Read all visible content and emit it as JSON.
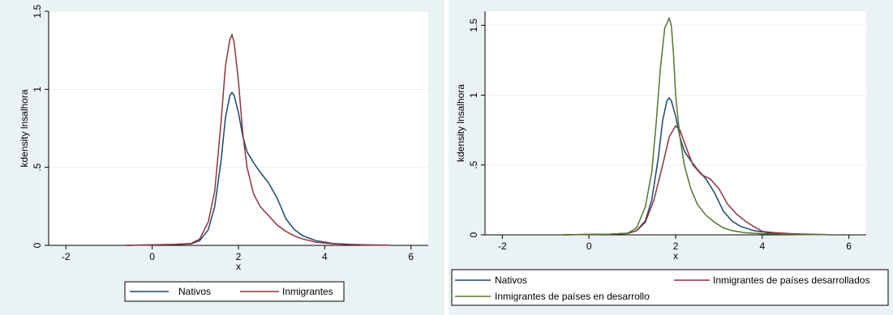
{
  "chart_data": [
    {
      "type": "line",
      "xlabel": "x",
      "ylabel": "kdensity lnsalhora",
      "xlim": [
        -2.4,
        6.4
      ],
      "ylim": [
        0,
        1.5
      ],
      "xticks": [
        -2,
        0,
        2,
        4,
        6
      ],
      "yticks": [
        0,
        0.5,
        1,
        1.5
      ],
      "xtick_labels": [
        "-2",
        "0",
        "2",
        "4",
        "6"
      ],
      "ytick_labels": [
        "0",
        ".5",
        "1",
        "1.5"
      ],
      "grid": true,
      "legend_position": "bottom",
      "series": [
        {
          "name": "Nativos",
          "color": "#1a476f",
          "x": [
            -0.6,
            0.0,
            0.5,
            0.9,
            1.1,
            1.3,
            1.45,
            1.6,
            1.7,
            1.8,
            1.85,
            1.9,
            2.0,
            2.1,
            2.2,
            2.35,
            2.5,
            2.7,
            2.9,
            3.1,
            3.3,
            3.5,
            3.8,
            4.2,
            4.6,
            5.0,
            5.5
          ],
          "y": [
            0.0,
            0.003,
            0.005,
            0.01,
            0.03,
            0.1,
            0.25,
            0.55,
            0.82,
            0.96,
            0.98,
            0.96,
            0.85,
            0.7,
            0.6,
            0.53,
            0.47,
            0.4,
            0.3,
            0.17,
            0.1,
            0.06,
            0.03,
            0.012,
            0.006,
            0.003,
            0.001
          ]
        },
        {
          "name": "Inmigrantes",
          "color": "#90353b",
          "x": [
            -0.6,
            0.0,
            0.5,
            0.9,
            1.1,
            1.3,
            1.45,
            1.6,
            1.7,
            1.8,
            1.85,
            1.9,
            2.0,
            2.1,
            2.2,
            2.35,
            2.5,
            2.7,
            2.9,
            3.1,
            3.3,
            3.5,
            3.8,
            4.2,
            4.6,
            5.0,
            5.5
          ],
          "y": [
            0.0,
            0.003,
            0.006,
            0.012,
            0.04,
            0.15,
            0.35,
            0.8,
            1.15,
            1.32,
            1.35,
            1.3,
            1.05,
            0.72,
            0.5,
            0.33,
            0.25,
            0.19,
            0.13,
            0.09,
            0.06,
            0.04,
            0.02,
            0.01,
            0.005,
            0.002,
            0.001
          ]
        }
      ]
    },
    {
      "type": "line",
      "xlabel": "x",
      "ylabel": "kdensity lnsalhora",
      "xlim": [
        -2.4,
        6.4
      ],
      "ylim": [
        0,
        1.6
      ],
      "xticks": [
        -2,
        0,
        2,
        4,
        6
      ],
      "yticks": [
        0,
        0.5,
        1,
        1.5
      ],
      "xtick_labels": [
        "-2",
        "0",
        "2",
        "4",
        "6"
      ],
      "ytick_labels": [
        "0",
        ".5",
        "1",
        "1.5"
      ],
      "grid": true,
      "legend_position": "bottom",
      "series": [
        {
          "name": "Nativos",
          "color": "#1a476f",
          "x": [
            -0.6,
            0.0,
            0.5,
            0.9,
            1.1,
            1.3,
            1.45,
            1.6,
            1.7,
            1.8,
            1.85,
            1.9,
            2.0,
            2.1,
            2.2,
            2.35,
            2.5,
            2.7,
            2.9,
            3.1,
            3.3,
            3.5,
            3.8,
            4.2,
            4.6,
            5.0,
            5.5
          ],
          "y": [
            0.0,
            0.003,
            0.005,
            0.01,
            0.03,
            0.1,
            0.25,
            0.55,
            0.82,
            0.96,
            0.98,
            0.96,
            0.85,
            0.7,
            0.6,
            0.53,
            0.47,
            0.4,
            0.3,
            0.17,
            0.1,
            0.06,
            0.03,
            0.012,
            0.006,
            0.003,
            0.001
          ]
        },
        {
          "name": "Inmigrantes de países desarrollados",
          "color": "#90353b",
          "x": [
            -0.6,
            0.0,
            0.5,
            0.9,
            1.1,
            1.3,
            1.5,
            1.7,
            1.85,
            2.0,
            2.1,
            2.25,
            2.4,
            2.6,
            2.8,
            3.0,
            3.2,
            3.4,
            3.6,
            3.8,
            4.0,
            4.3,
            4.7,
            5.1,
            5.5
          ],
          "y": [
            0.0,
            0.003,
            0.005,
            0.01,
            0.03,
            0.09,
            0.25,
            0.5,
            0.7,
            0.78,
            0.75,
            0.62,
            0.5,
            0.43,
            0.4,
            0.33,
            0.22,
            0.15,
            0.1,
            0.06,
            0.025,
            0.015,
            0.008,
            0.004,
            0.002
          ]
        },
        {
          "name": "Inmigrantes de países en desarrollo",
          "color": "#55752f",
          "x": [
            -0.6,
            0.0,
            0.5,
            0.9,
            1.1,
            1.3,
            1.45,
            1.55,
            1.65,
            1.75,
            1.85,
            1.9,
            1.95,
            2.0,
            2.1,
            2.2,
            2.35,
            2.5,
            2.7,
            2.9,
            3.1,
            3.3,
            3.6,
            4.0,
            4.5,
            5.0,
            5.5
          ],
          "y": [
            0.0,
            0.003,
            0.005,
            0.012,
            0.05,
            0.2,
            0.45,
            0.8,
            1.2,
            1.48,
            1.55,
            1.5,
            1.3,
            1.0,
            0.7,
            0.5,
            0.33,
            0.22,
            0.14,
            0.09,
            0.05,
            0.03,
            0.015,
            0.008,
            0.004,
            0.002,
            0.001
          ]
        }
      ]
    }
  ]
}
